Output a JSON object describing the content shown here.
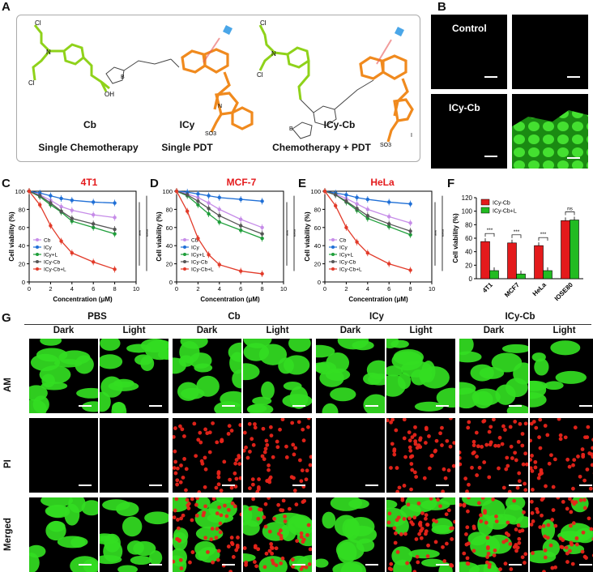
{
  "panels": {
    "A": "A",
    "B": "B",
    "C": "C",
    "D": "D",
    "E": "E",
    "F": "F",
    "G": "G"
  },
  "panelA": {
    "compounds": [
      {
        "name": "Cb",
        "caption": "Single Chemotherapy"
      },
      {
        "name": "ICy",
        "caption": "Single PDT"
      },
      {
        "name": "ICy-Cb",
        "caption": "Chemotherapy + PDT"
      }
    ],
    "atoms": {
      "cl": "Cl",
      "n": "N",
      "oh": "OH",
      "o": "O",
      "b": "B",
      "so3": "SO3",
      "i": "I"
    }
  },
  "panelB": {
    "labels": [
      "Control",
      "ICy-Cb"
    ]
  },
  "colors": {
    "Cb": "#c68ce8",
    "ICy": "#1f6fd6",
    "ICy+L": "#1e9e3a",
    "ICy-Cb": "#555555",
    "ICy-Cb+L": "#e23b2a",
    "bar_red": "#e41a1c",
    "bar_green": "#22bb22",
    "title_red": "#e41a1c",
    "cell_green": "#33dd22"
  },
  "chart_data": [
    {
      "type": "line",
      "title": "4T1",
      "xlabel": "Concentration (μM)",
      "ylabel": "Cell viability (%)",
      "x": [
        0,
        1,
        2,
        3,
        4,
        6,
        8
      ],
      "xlim": [
        0,
        10
      ],
      "ylim": [
        0,
        100
      ],
      "xticks": [
        "0",
        "2",
        "4",
        "6",
        "8",
        "10"
      ],
      "yticks": [
        "0",
        "20",
        "40",
        "60",
        "80",
        "100"
      ],
      "legend": "bottom-left",
      "series": [
        {
          "name": "Cb",
          "values": [
            100,
            96,
            90,
            83,
            79,
            74,
            71
          ]
        },
        {
          "name": "ICy",
          "values": [
            100,
            98,
            95,
            92,
            90,
            88,
            87
          ]
        },
        {
          "name": "ICy+L",
          "values": [
            100,
            94,
            85,
            77,
            67,
            60,
            53
          ]
        },
        {
          "name": "ICy-Cb",
          "values": [
            100,
            95,
            87,
            78,
            70,
            64,
            58
          ]
        },
        {
          "name": "ICy-Cb+L",
          "values": [
            100,
            85,
            62,
            45,
            32,
            22,
            14
          ]
        }
      ],
      "significance": [
        "***",
        "****"
      ]
    },
    {
      "type": "line",
      "title": "MCF-7",
      "xlabel": "Concentration (μM)",
      "ylabel": "Cell viability (%)",
      "x": [
        0,
        1,
        2,
        3,
        4,
        6,
        8
      ],
      "xlim": [
        0,
        10
      ],
      "ylim": [
        0,
        100
      ],
      "xticks": [
        "0",
        "2",
        "4",
        "6",
        "8",
        "10"
      ],
      "yticks": [
        "0",
        "20",
        "40",
        "60",
        "80",
        "100"
      ],
      "legend": "bottom-left",
      "series": [
        {
          "name": "Cb",
          "values": [
            100,
            97,
            93,
            87,
            80,
            69,
            60
          ]
        },
        {
          "name": "ICy",
          "values": [
            100,
            99,
            97,
            95,
            93,
            91,
            89
          ]
        },
        {
          "name": "ICy+L",
          "values": [
            100,
            95,
            85,
            75,
            66,
            57,
            48
          ]
        },
        {
          "name": "ICy-Cb",
          "values": [
            100,
            96,
            89,
            81,
            73,
            62,
            53
          ]
        },
        {
          "name": "ICy-Cb+L",
          "values": [
            100,
            78,
            48,
            30,
            19,
            12,
            9
          ]
        }
      ],
      "significance": [
        "***",
        "****"
      ]
    },
    {
      "type": "line",
      "title": "HeLa",
      "xlabel": "Concentration (μM)",
      "ylabel": "Cell viability (%)",
      "x": [
        0,
        1,
        2,
        3,
        4,
        6,
        8
      ],
      "xlim": [
        0,
        10
      ],
      "ylim": [
        0,
        100
      ],
      "xticks": [
        "0",
        "2",
        "4",
        "6",
        "8",
        "10"
      ],
      "yticks": [
        "0",
        "20",
        "40",
        "60",
        "80",
        "100"
      ],
      "legend": "bottom-left",
      "series": [
        {
          "name": "Cb",
          "values": [
            100,
            97,
            92,
            86,
            80,
            72,
            65
          ]
        },
        {
          "name": "ICy",
          "values": [
            100,
            98,
            96,
            93,
            91,
            88,
            86
          ]
        },
        {
          "name": "ICy+L",
          "values": [
            100,
            96,
            88,
            79,
            70,
            61,
            52
          ]
        },
        {
          "name": "ICy-Cb",
          "values": [
            100,
            96,
            89,
            81,
            73,
            64,
            56
          ]
        },
        {
          "name": "ICy-Cb+L",
          "values": [
            100,
            84,
            60,
            44,
            32,
            20,
            13
          ]
        }
      ],
      "significance": [
        "***",
        "****"
      ]
    },
    {
      "type": "bar",
      "ylabel": "Cell viability (%)",
      "categories": [
        "4T1",
        "MCF7",
        "HeLa",
        "IOSE80"
      ],
      "ylim": [
        0,
        120
      ],
      "yticks": [
        "0",
        "20",
        "40",
        "60",
        "80",
        "100",
        "120"
      ],
      "legend": "top-left",
      "series": [
        {
          "name": "ICy-Cb",
          "values": [
            55,
            53,
            49,
            86
          ]
        },
        {
          "name": "ICy-Cb+L",
          "values": [
            12,
            7,
            12,
            87
          ]
        }
      ],
      "significance": [
        "***",
        "***",
        "***",
        "ns"
      ]
    }
  ],
  "panelG": {
    "groups": [
      "PBS",
      "Cb",
      "ICy",
      "ICy-Cb"
    ],
    "conditions": [
      "Dark",
      "Light"
    ],
    "rows": [
      "AM",
      "PI",
      "Merged"
    ]
  }
}
